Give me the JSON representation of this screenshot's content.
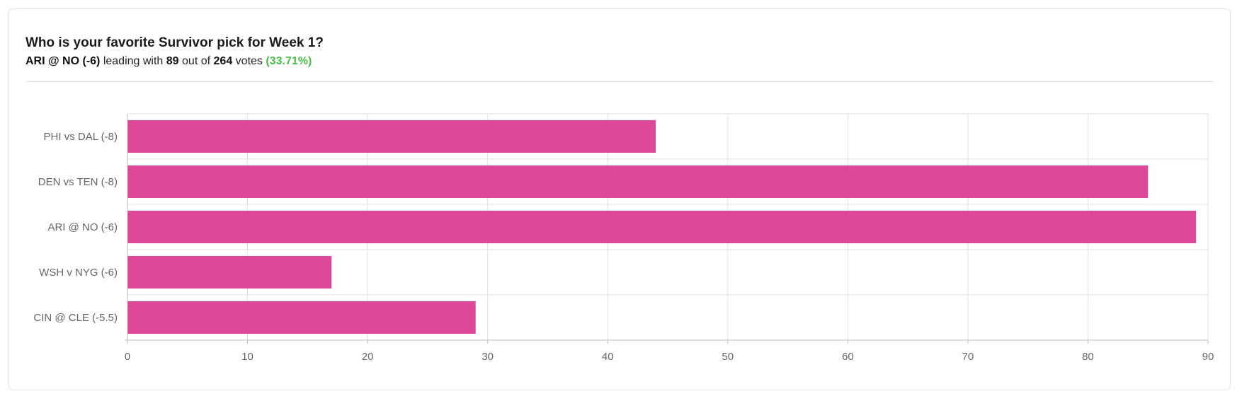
{
  "poll": {
    "question": "Who is your favorite Survivor pick for Week 1?",
    "leader": "ARI @ NO (-6)",
    "leading_with": "leading with",
    "leader_votes": "89",
    "out_of": "out of",
    "total_votes": "264",
    "votes_word": "votes",
    "leader_percent": "(33.71%)"
  },
  "colors": {
    "bar": "#de4899",
    "percent": "#4cbb4c",
    "grid": "#e1e1e1",
    "axis": "#bbbbbb",
    "tick_text": "#666666"
  },
  "chart_data": {
    "type": "bar",
    "orientation": "horizontal",
    "categories": [
      "PHI vs DAL (-8)",
      "DEN vs TEN (-8)",
      "ARI @ NO (-6)",
      "WSH v NYG (-6)",
      "CIN @ CLE (-5.5)"
    ],
    "values": [
      44,
      85,
      89,
      17,
      29
    ],
    "xlim": [
      0,
      90
    ],
    "xticks": [
      0,
      10,
      20,
      30,
      40,
      50,
      60,
      70,
      80,
      90
    ],
    "grid": true,
    "legend": "none",
    "title": "",
    "xlabel": "",
    "ylabel": ""
  }
}
